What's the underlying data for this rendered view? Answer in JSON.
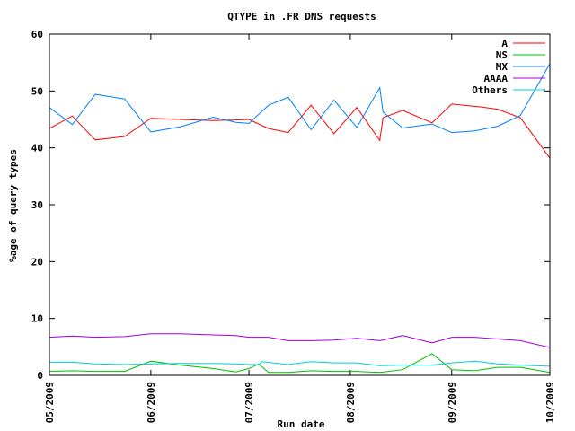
{
  "chart_data": {
    "type": "line",
    "title": "QTYPE in .FR DNS requests",
    "xlabel": "Run date",
    "ylabel": "%age of query types",
    "xlim": [
      "05/2009",
      "10/2009"
    ],
    "ylim": [
      0,
      60
    ],
    "x_ticks": [
      "05/2009",
      "06/2009",
      "07/2009",
      "08/2009",
      "09/2009",
      "10/2009"
    ],
    "y_ticks": [
      0,
      10,
      20,
      30,
      40,
      50,
      60
    ],
    "grid": false,
    "legend_position": "top-right",
    "series": [
      {
        "name": "A",
        "color": "#ff0000",
        "points": [
          [
            "2009-05-01",
            43.4
          ],
          [
            "2009-05-08",
            45.6
          ],
          [
            "2009-05-15",
            41.4
          ],
          [
            "2009-05-24",
            42.0
          ],
          [
            "2009-06-01",
            45.2
          ],
          [
            "2009-06-10",
            45.0
          ],
          [
            "2009-06-20",
            44.8
          ],
          [
            "2009-06-27",
            44.9
          ],
          [
            "2009-07-01",
            45.0
          ],
          [
            "2009-07-07",
            43.4
          ],
          [
            "2009-07-13",
            42.7
          ],
          [
            "2009-07-20",
            47.5
          ],
          [
            "2009-07-27",
            42.5
          ],
          [
            "2009-08-03",
            47.1
          ],
          [
            "2009-08-10",
            41.3
          ],
          [
            "2009-08-11",
            45.3
          ],
          [
            "2009-08-17",
            46.6
          ],
          [
            "2009-08-26",
            44.4
          ],
          [
            "2009-09-01",
            47.7
          ],
          [
            "2009-09-10",
            47.2
          ],
          [
            "2009-09-15",
            46.8
          ],
          [
            "2009-09-22",
            45.3
          ],
          [
            "2009-10-01",
            38.2
          ]
        ]
      },
      {
        "name": "NS",
        "color": "#00c000",
        "points": [
          [
            "2009-05-01",
            0.7
          ],
          [
            "2009-05-08",
            0.8
          ],
          [
            "2009-05-15",
            0.7
          ],
          [
            "2009-05-24",
            0.7
          ],
          [
            "2009-06-01",
            2.5
          ],
          [
            "2009-06-10",
            1.8
          ],
          [
            "2009-06-20",
            1.2
          ],
          [
            "2009-06-27",
            0.6
          ],
          [
            "2009-07-01",
            1.2
          ],
          [
            "2009-07-04",
            2.0
          ],
          [
            "2009-07-07",
            0.5
          ],
          [
            "2009-07-13",
            0.5
          ],
          [
            "2009-07-20",
            0.8
          ],
          [
            "2009-07-27",
            0.7
          ],
          [
            "2009-08-03",
            0.7
          ],
          [
            "2009-08-10",
            0.5
          ],
          [
            "2009-08-17",
            1.0
          ],
          [
            "2009-08-26",
            3.8
          ],
          [
            "2009-09-01",
            1.0
          ],
          [
            "2009-09-08",
            0.8
          ],
          [
            "2009-09-15",
            1.4
          ],
          [
            "2009-09-22",
            1.4
          ],
          [
            "2009-10-01",
            0.5
          ]
        ]
      },
      {
        "name": "MX",
        "color": "#0080ff",
        "points": [
          [
            "2009-05-01",
            47.1
          ],
          [
            "2009-05-08",
            44.1
          ],
          [
            "2009-05-15",
            49.4
          ],
          [
            "2009-05-24",
            48.6
          ],
          [
            "2009-06-01",
            42.8
          ],
          [
            "2009-06-10",
            43.7
          ],
          [
            "2009-06-20",
            45.4
          ],
          [
            "2009-06-27",
            44.5
          ],
          [
            "2009-07-01",
            44.3
          ],
          [
            "2009-07-07",
            47.5
          ],
          [
            "2009-07-13",
            48.9
          ],
          [
            "2009-07-20",
            43.2
          ],
          [
            "2009-07-27",
            48.4
          ],
          [
            "2009-08-03",
            43.6
          ],
          [
            "2009-08-10",
            50.6
          ],
          [
            "2009-08-11",
            46.3
          ],
          [
            "2009-08-17",
            43.5
          ],
          [
            "2009-08-26",
            44.2
          ],
          [
            "2009-09-01",
            42.7
          ],
          [
            "2009-09-08",
            43.0
          ],
          [
            "2009-09-15",
            43.8
          ],
          [
            "2009-09-22",
            45.7
          ],
          [
            "2009-10-01",
            54.8
          ]
        ]
      },
      {
        "name": "AAAA",
        "color": "#a000e0",
        "points": [
          [
            "2009-05-01",
            6.7
          ],
          [
            "2009-05-08",
            6.9
          ],
          [
            "2009-05-15",
            6.7
          ],
          [
            "2009-05-24",
            6.8
          ],
          [
            "2009-06-01",
            7.3
          ],
          [
            "2009-06-10",
            7.3
          ],
          [
            "2009-06-20",
            7.1
          ],
          [
            "2009-06-27",
            7.0
          ],
          [
            "2009-07-01",
            6.7
          ],
          [
            "2009-07-07",
            6.7
          ],
          [
            "2009-07-13",
            6.1
          ],
          [
            "2009-07-20",
            6.1
          ],
          [
            "2009-07-27",
            6.2
          ],
          [
            "2009-08-03",
            6.5
          ],
          [
            "2009-08-10",
            6.1
          ],
          [
            "2009-08-17",
            7.0
          ],
          [
            "2009-08-26",
            5.7
          ],
          [
            "2009-09-01",
            6.7
          ],
          [
            "2009-09-08",
            6.7
          ],
          [
            "2009-09-15",
            6.4
          ],
          [
            "2009-09-22",
            6.1
          ],
          [
            "2009-10-01",
            4.9
          ]
        ]
      },
      {
        "name": "Others",
        "color": "#00d0d0",
        "points": [
          [
            "2009-05-01",
            2.3
          ],
          [
            "2009-05-08",
            2.3
          ],
          [
            "2009-05-15",
            2.0
          ],
          [
            "2009-05-24",
            1.9
          ],
          [
            "2009-06-01",
            2.0
          ],
          [
            "2009-06-10",
            2.1
          ],
          [
            "2009-06-20",
            2.1
          ],
          [
            "2009-06-27",
            2.0
          ],
          [
            "2009-07-01",
            1.9
          ],
          [
            "2009-07-04",
            1.9
          ],
          [
            "2009-07-05",
            2.4
          ],
          [
            "2009-07-13",
            1.9
          ],
          [
            "2009-07-20",
            2.4
          ],
          [
            "2009-07-27",
            2.2
          ],
          [
            "2009-08-03",
            2.2
          ],
          [
            "2009-08-10",
            1.7
          ],
          [
            "2009-08-17",
            1.8
          ],
          [
            "2009-08-26",
            1.8
          ],
          [
            "2009-09-01",
            2.2
          ],
          [
            "2009-09-08",
            2.5
          ],
          [
            "2009-09-15",
            2.0
          ],
          [
            "2009-09-22",
            1.8
          ],
          [
            "2009-10-01",
            1.6
          ]
        ]
      }
    ]
  }
}
